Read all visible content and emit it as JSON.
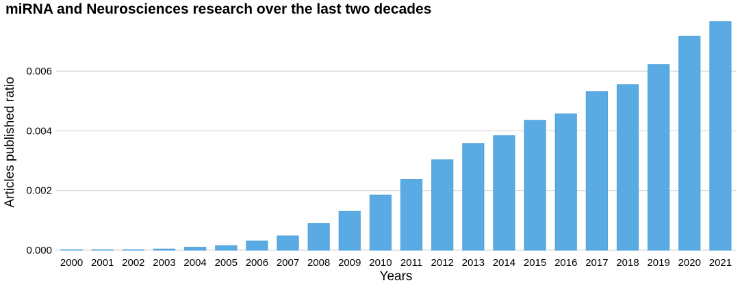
{
  "chart_data": {
    "type": "bar",
    "title": "miRNA and Neurosciences research over the last two decades",
    "xlabel": "Years",
    "ylabel": "Articles published ratio",
    "categories": [
      "2000",
      "2001",
      "2002",
      "2003",
      "2004",
      "2005",
      "2006",
      "2007",
      "2008",
      "2009",
      "2010",
      "2011",
      "2012",
      "2013",
      "2014",
      "2015",
      "2016",
      "2017",
      "2018",
      "2019",
      "2020",
      "2021"
    ],
    "values": [
      3e-06,
      5e-06,
      1.5e-05,
      4e-05,
      0.0001,
      0.00015,
      0.00031,
      0.00048,
      0.0009,
      0.0013,
      0.00185,
      0.00237,
      0.00303,
      0.00358,
      0.00384,
      0.00435,
      0.00457,
      0.00532,
      0.00555,
      0.00622,
      0.00717,
      0.00766
    ],
    "yticks": [
      "0.000",
      "0.002",
      "0.004",
      "0.006"
    ],
    "ytick_values": [
      0,
      0.002,
      0.004,
      0.006
    ],
    "ylim": [
      0,
      0.0077
    ],
    "grid": true,
    "bar_color": "#5aabe4"
  }
}
